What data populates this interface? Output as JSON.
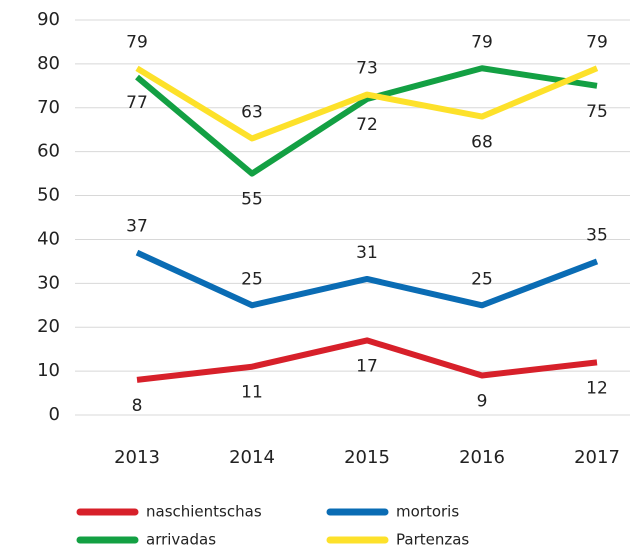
{
  "chart_data": {
    "type": "line",
    "categories": [
      "2013",
      "2014",
      "2015",
      "2016",
      "2017"
    ],
    "series": [
      {
        "name": "naschientschas",
        "color": "#d7202a",
        "values": [
          8,
          11,
          17,
          9,
          12
        ]
      },
      {
        "name": "mortoris",
        "color": "#0a6cb4",
        "values": [
          37,
          25,
          31,
          25,
          35
        ]
      },
      {
        "name": "arrivadas",
        "color": "#13a043",
        "values": [
          77,
          55,
          72,
          79,
          75
        ]
      },
      {
        "name": "Partenzas",
        "color": "#fde12a",
        "values": [
          79,
          63,
          73,
          68,
          79
        ]
      }
    ],
    "ylim": [
      0,
      90
    ],
    "yticks": [
      0,
      10,
      20,
      30,
      40,
      50,
      60,
      70,
      80,
      90
    ],
    "grid": true,
    "legend": "bottom"
  }
}
